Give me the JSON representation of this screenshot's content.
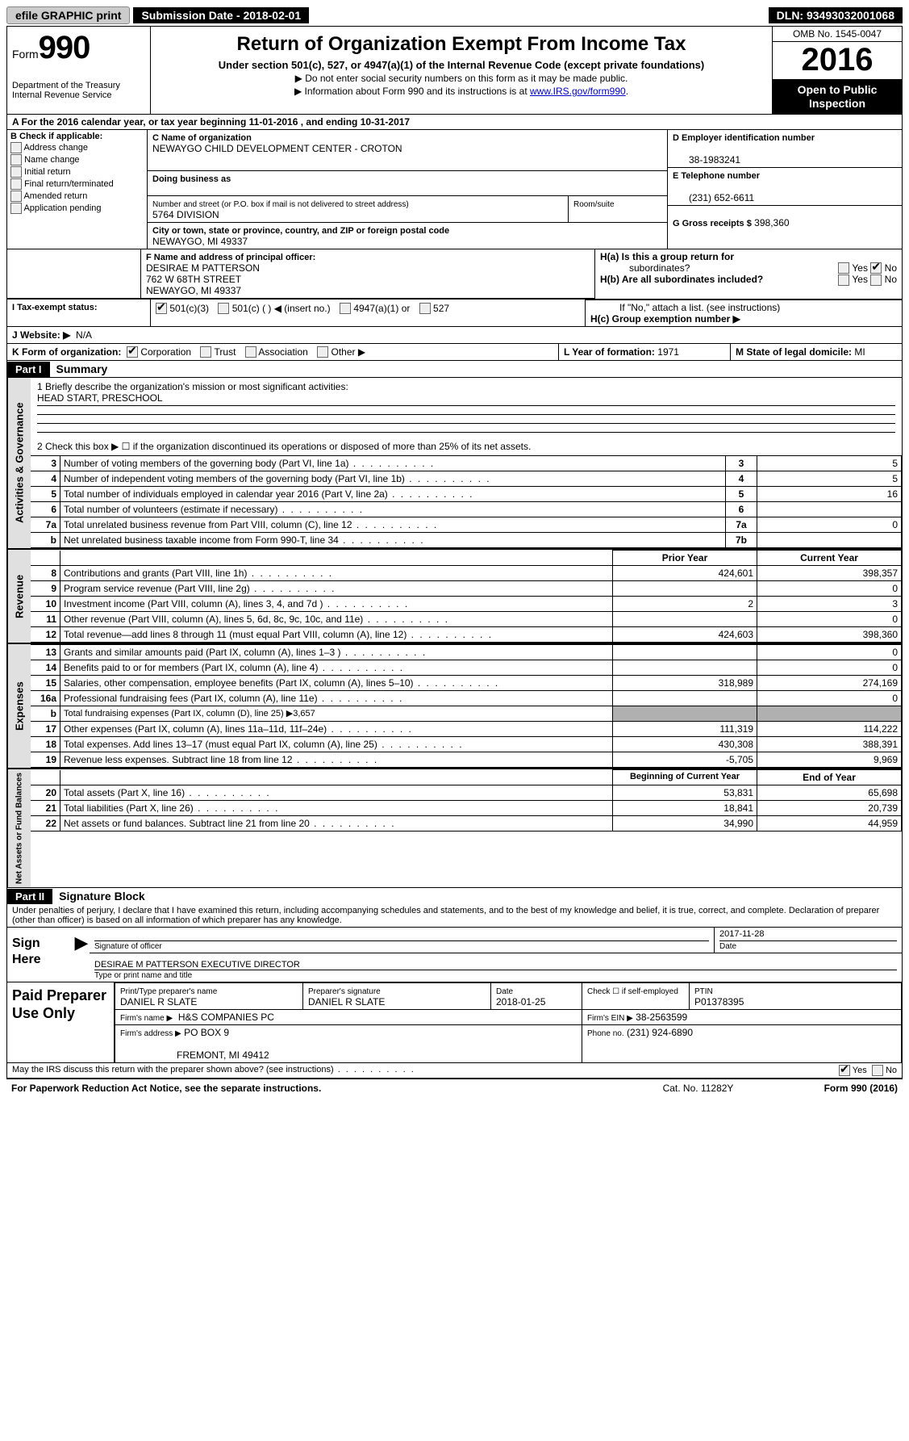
{
  "top": {
    "efile_btn": "efile GRAPHIC print",
    "submission": "Submission Date - 2018-02-01",
    "dln": "DLN: 93493032001068"
  },
  "header": {
    "form_prefix": "Form",
    "form_number": "990",
    "dept1": "Department of the Treasury",
    "dept2": "Internal Revenue Service",
    "title": "Return of Organization Exempt From Income Tax",
    "subtitle": "Under section 501(c), 527, or 4947(a)(1) of the Internal Revenue Code (except private foundations)",
    "note1": "▶ Do not enter social security numbers on this form as it may be made public.",
    "note2_pre": "▶ Information about Form 990 and its instructions is at ",
    "note2_link": "www.IRS.gov/form990",
    "omb": "OMB No. 1545-0047",
    "year": "2016",
    "open1": "Open to Public",
    "open2": "Inspection"
  },
  "row_a": "A  For the 2016 calendar year, or tax year beginning 11-01-2016    , and ending 10-31-2017",
  "section_b": {
    "label": "B Check if applicable:",
    "opts": [
      "Address change",
      "Name change",
      "Initial return",
      "Final return/terminated",
      "Amended return",
      "Application pending"
    ],
    "c_label": "C Name of organization",
    "c_name": "NEWAYGO CHILD DEVELOPMENT CENTER - CROTON",
    "dba_label": "Doing business as",
    "addr_label": "Number and street (or P.O. box if mail is not delivered to street address)",
    "room_label": "Room/suite",
    "addr": "5764 DIVISION",
    "city_label": "City or town, state or province, country, and ZIP or foreign postal code",
    "city": "NEWAYGO, MI  49337",
    "d_label": "D Employer identification number",
    "d_val": "38-1983241",
    "e_label": "E Telephone number",
    "e_val": "(231) 652-6611",
    "g_label": "G Gross receipts $",
    "g_val": "398,360"
  },
  "section_f": {
    "f_label": "F Name and address of principal officer:",
    "f_name": "DESIRAE M PATTERSON",
    "f_addr1": "762 W 68TH STREET",
    "f_addr2": "NEWAYGO, MI  49337",
    "ha_label": "H(a)  Is this a group return for",
    "ha_sub": "subordinates?",
    "hb_label": "H(b)  Are all subordinates included?",
    "hb_note": "If \"No,\" attach a list. (see instructions)",
    "hc_label": "H(c)  Group exemption number ▶",
    "i_label": "I  Tax-exempt status:",
    "i_501c3": "501(c)(3)",
    "i_501c": "501(c) (   ) ◀ (insert no.)",
    "i_4947": "4947(a)(1) or",
    "i_527": "527",
    "j_label": "J  Website: ▶",
    "j_val": "N/A",
    "k_label": "K Form of organization:",
    "k_corp": "Corporation",
    "k_trust": "Trust",
    "k_assoc": "Association",
    "k_other": "Other ▶",
    "l_label": "L Year of formation:",
    "l_val": "1971",
    "m_label": "M State of legal domicile:",
    "m_val": "MI"
  },
  "part1": {
    "header": "Part I",
    "title": "Summary",
    "line1_label": "1 Briefly describe the organization's mission or most significant activities:",
    "line1_val": "HEAD START, PRESCHOOL",
    "line2": "2   Check this box ▶ ☐  if the organization discontinued its operations or disposed of more than 25% of its net assets.",
    "gov_label": "Activities & Governance",
    "rev_label": "Revenue",
    "exp_label": "Expenses",
    "net_label": "Net Assets or Fund Balances",
    "gov_rows": [
      {
        "n": "3",
        "d": "Number of voting members of the governing body (Part VI, line 1a)",
        "k": "3",
        "v": "5"
      },
      {
        "n": "4",
        "d": "Number of independent voting members of the governing body (Part VI, line 1b)",
        "k": "4",
        "v": "5"
      },
      {
        "n": "5",
        "d": "Total number of individuals employed in calendar year 2016 (Part V, line 2a)",
        "k": "5",
        "v": "16"
      },
      {
        "n": "6",
        "d": "Total number of volunteers (estimate if necessary)",
        "k": "6",
        "v": ""
      },
      {
        "n": "7a",
        "d": "Total unrelated business revenue from Part VIII, column (C), line 12",
        "k": "7a",
        "v": "0"
      },
      {
        "n": "b",
        "d": "Net unrelated business taxable income from Form 990-T, line 34",
        "k": "7b",
        "v": ""
      }
    ],
    "py_header": "Prior Year",
    "cy_header": "Current Year",
    "rev_rows": [
      {
        "n": "8",
        "d": "Contributions and grants (Part VIII, line 1h)",
        "py": "424,601",
        "cy": "398,357"
      },
      {
        "n": "9",
        "d": "Program service revenue (Part VIII, line 2g)",
        "py": "",
        "cy": "0"
      },
      {
        "n": "10",
        "d": "Investment income (Part VIII, column (A), lines 3, 4, and 7d )",
        "py": "2",
        "cy": "3"
      },
      {
        "n": "11",
        "d": "Other revenue (Part VIII, column (A), lines 5, 6d, 8c, 9c, 10c, and 11e)",
        "py": "",
        "cy": "0"
      },
      {
        "n": "12",
        "d": "Total revenue—add lines 8 through 11 (must equal Part VIII, column (A), line 12)",
        "py": "424,603",
        "cy": "398,360"
      }
    ],
    "exp_rows": [
      {
        "n": "13",
        "d": "Grants and similar amounts paid (Part IX, column (A), lines 1–3 )",
        "py": "",
        "cy": "0"
      },
      {
        "n": "14",
        "d": "Benefits paid to or for members (Part IX, column (A), line 4)",
        "py": "",
        "cy": "0"
      },
      {
        "n": "15",
        "d": "Salaries, other compensation, employee benefits (Part IX, column (A), lines 5–10)",
        "py": "318,989",
        "cy": "274,169"
      },
      {
        "n": "16a",
        "d": "Professional fundraising fees (Part IX, column (A), line 11e)",
        "py": "",
        "cy": "0"
      },
      {
        "n": "b",
        "d": "Total fundraising expenses (Part IX, column (D), line 25) ▶3,657",
        "py": "grey",
        "cy": "grey"
      },
      {
        "n": "17",
        "d": "Other expenses (Part IX, column (A), lines 11a–11d, 11f–24e)",
        "py": "111,319",
        "cy": "114,222"
      },
      {
        "n": "18",
        "d": "Total expenses. Add lines 13–17 (must equal Part IX, column (A), line 25)",
        "py": "430,308",
        "cy": "388,391"
      },
      {
        "n": "19",
        "d": "Revenue less expenses. Subtract line 18 from line 12",
        "py": "-5,705",
        "cy": "9,969"
      }
    ],
    "by_header": "Beginning of Current Year",
    "ey_header": "End of Year",
    "net_rows": [
      {
        "n": "20",
        "d": "Total assets (Part X, line 16)",
        "py": "53,831",
        "cy": "65,698"
      },
      {
        "n": "21",
        "d": "Total liabilities (Part X, line 26)",
        "py": "18,841",
        "cy": "20,739"
      },
      {
        "n": "22",
        "d": "Net assets or fund balances. Subtract line 21 from line 20",
        "py": "34,990",
        "cy": "44,959"
      }
    ]
  },
  "part2": {
    "header": "Part II",
    "title": "Signature Block",
    "intro": "Under penalties of perjury, I declare that I have examined this return, including accompanying schedules and statements, and to the best of my knowledge and belief, it is true, correct, and complete. Declaration of preparer (other than officer) is based on all information of which preparer has any knowledge.",
    "sign_here": "Sign Here",
    "sig_officer": "Signature of officer",
    "sig_date_label": "Date",
    "sig_date": "2017-11-28",
    "sig_name_line": "DESIRAE M PATTERSON EXECUTIVE DIRECTOR",
    "sig_name_label": "Type or print name and title",
    "paid_label": "Paid Preparer Use Only",
    "prep_name_label": "Print/Type preparer's name",
    "prep_name": "DANIEL R SLATE",
    "prep_sig_label": "Preparer's signature",
    "prep_sig": "DANIEL R SLATE",
    "prep_date_label": "Date",
    "prep_date": "2018-01-25",
    "prep_check_label": "Check ☐ if self-employed",
    "ptin_label": "PTIN",
    "ptin": "P01378395",
    "firm_name_label": "Firm's name      ▶",
    "firm_name": "H&S COMPANIES PC",
    "firm_ein_label": "Firm's EIN ▶",
    "firm_ein": "38-2563599",
    "firm_addr_label": "Firm's address ▶",
    "firm_addr1": "PO BOX 9",
    "firm_addr2": "FREMONT, MI  49412",
    "firm_phone_label": "Phone no.",
    "firm_phone": "(231) 924-6890",
    "discuss": "May the IRS discuss this return with the preparer shown above? (see instructions)",
    "yes": "Yes",
    "no": "No"
  },
  "footer": {
    "pra": "For Paperwork Reduction Act Notice, see the separate instructions.",
    "cat": "Cat. No. 11282Y",
    "form": "Form 990 (2016)"
  }
}
